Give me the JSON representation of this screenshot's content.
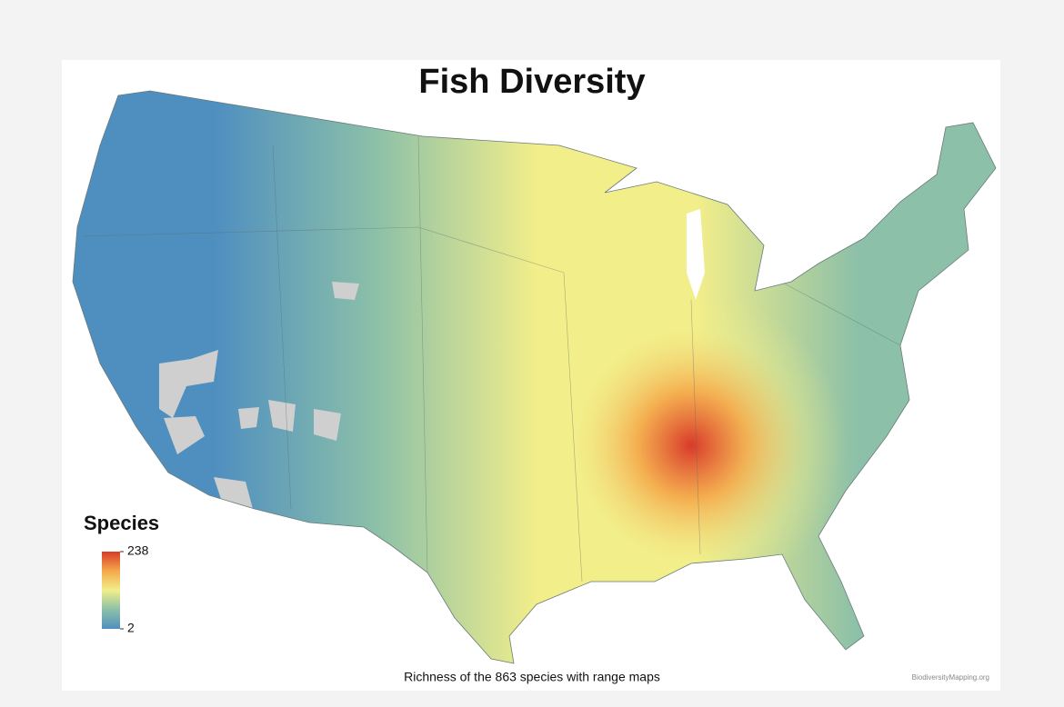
{
  "title": "Fish Diversity",
  "legend": {
    "title": "Species",
    "ticks": [
      238,
      2
    ],
    "colors": [
      "#4f8fc0",
      "#8cc0a8",
      "#f2ee8a",
      "#f5a84a",
      "#d83a2a"
    ]
  },
  "caption": "Richness of the 863 species with range maps",
  "credit": "BiodiversityMapping.org"
}
